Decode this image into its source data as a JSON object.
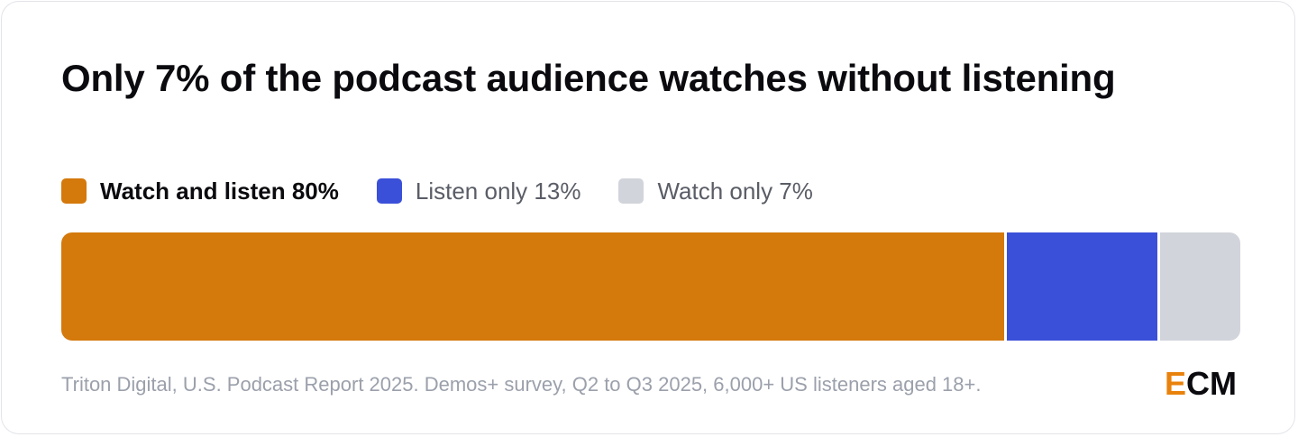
{
  "chart_data": {
    "type": "bar",
    "orientation": "horizontal-stacked",
    "title": "Only 7% of the podcast audience watches without listening",
    "categories": [
      "Watch and listen",
      "Listen only",
      "Watch only"
    ],
    "series": [
      {
        "name": "Watch and listen",
        "value": 80,
        "label": "Watch and listen 80%",
        "color": "#d4790b",
        "highlight": true
      },
      {
        "name": "Listen only",
        "value": 13,
        "label": "Listen only 13%",
        "color": "#3b50d9",
        "highlight": false
      },
      {
        "name": "Watch only",
        "value": 7,
        "label": "Watch only 7%",
        "color": "#d2d4db",
        "highlight": false
      }
    ],
    "unit": "%",
    "total": 100,
    "legend_position": "top-left",
    "grid": false
  },
  "source": "Triton Digital, U.S. Podcast Report 2025. Demos+ survey, Q2 to Q3 2025, 6,000+ US listeners aged 18+.",
  "logo": {
    "first": "E",
    "rest": "CM"
  }
}
